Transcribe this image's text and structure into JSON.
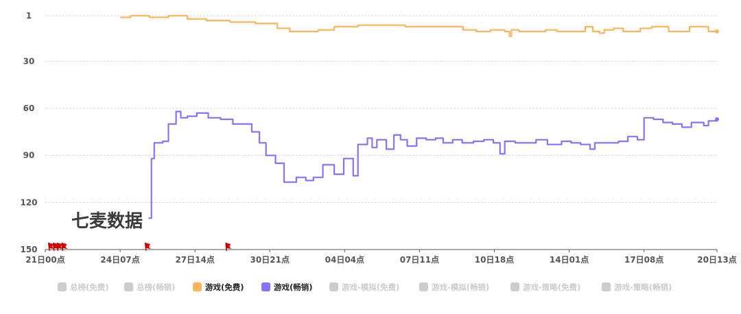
{
  "chart_data": {
    "type": "line",
    "y_axis": {
      "ticks": [
        "1",
        "30",
        "60",
        "90",
        "120",
        "150"
      ],
      "tick_values": [
        1,
        30,
        60,
        90,
        120,
        150
      ],
      "inverted": true,
      "range": [
        1,
        150
      ]
    },
    "x_axis": {
      "ticks": [
        "21日00点",
        "24日07点",
        "27日14点",
        "30日21点",
        "04日04点",
        "07日11点",
        "10日18点",
        "14日01点",
        "17日08点",
        "20日13点"
      ],
      "tick_values": [
        0,
        79,
        158,
        237,
        316,
        395,
        474,
        553,
        632,
        709
      ],
      "range": [
        0,
        709
      ]
    },
    "grid": true,
    "series": [
      {
        "name": "游戏(免费)",
        "color": "#ffb35c",
        "points": [
          [
            79,
            2
          ],
          [
            90,
            1
          ],
          [
            110,
            2
          ],
          [
            130,
            1
          ],
          [
            150,
            3
          ],
          [
            170,
            4
          ],
          [
            195,
            5
          ],
          [
            222,
            6
          ],
          [
            240,
            6
          ],
          [
            245,
            9
          ],
          [
            258,
            11
          ],
          [
            275,
            11
          ],
          [
            288,
            10
          ],
          [
            305,
            8
          ],
          [
            330,
            7
          ],
          [
            355,
            7
          ],
          [
            380,
            8
          ],
          [
            410,
            8
          ],
          [
            436,
            8
          ],
          [
            441,
            10
          ],
          [
            455,
            11
          ],
          [
            470,
            10
          ],
          [
            485,
            11
          ],
          [
            490,
            14
          ],
          [
            492,
            10
          ],
          [
            500,
            11
          ],
          [
            515,
            11
          ],
          [
            528,
            10
          ],
          [
            540,
            11
          ],
          [
            555,
            11
          ],
          [
            565,
            11
          ],
          [
            570,
            8
          ],
          [
            578,
            11
          ],
          [
            585,
            12
          ],
          [
            590,
            10
          ],
          [
            600,
            9
          ],
          [
            610,
            11
          ],
          [
            620,
            11
          ],
          [
            628,
            9
          ],
          [
            640,
            8
          ],
          [
            650,
            8
          ],
          [
            658,
            11
          ],
          [
            670,
            11
          ],
          [
            680,
            8
          ],
          [
            690,
            8
          ],
          [
            700,
            11
          ],
          [
            709,
            11
          ]
        ]
      },
      {
        "name": "游戏(畅销)",
        "color": "#8474fb",
        "points": [
          [
            109,
            130
          ],
          [
            112,
            92
          ],
          [
            115,
            82
          ],
          [
            124,
            81
          ],
          [
            130,
            70
          ],
          [
            138,
            62
          ],
          [
            143,
            66
          ],
          [
            150,
            65
          ],
          [
            160,
            63
          ],
          [
            172,
            66
          ],
          [
            185,
            67
          ],
          [
            198,
            70
          ],
          [
            208,
            70
          ],
          [
            218,
            75
          ],
          [
            226,
            82
          ],
          [
            233,
            90
          ],
          [
            243,
            95
          ],
          [
            252,
            107
          ],
          [
            265,
            104
          ],
          [
            275,
            106
          ],
          [
            283,
            104
          ],
          [
            293,
            96
          ],
          [
            305,
            102
          ],
          [
            315,
            92
          ],
          [
            325,
            103
          ],
          [
            330,
            83
          ],
          [
            340,
            79
          ],
          [
            345,
            85
          ],
          [
            350,
            80
          ],
          [
            360,
            86
          ],
          [
            368,
            77
          ],
          [
            375,
            80
          ],
          [
            382,
            84
          ],
          [
            392,
            79
          ],
          [
            402,
            80
          ],
          [
            412,
            79
          ],
          [
            420,
            82
          ],
          [
            430,
            80
          ],
          [
            440,
            82
          ],
          [
            452,
            81
          ],
          [
            463,
            80
          ],
          [
            473,
            82
          ],
          [
            480,
            89
          ],
          [
            485,
            81
          ],
          [
            496,
            82
          ],
          [
            508,
            82
          ],
          [
            518,
            80
          ],
          [
            530,
            83
          ],
          [
            545,
            81
          ],
          [
            555,
            82
          ],
          [
            565,
            83
          ],
          [
            575,
            86
          ],
          [
            580,
            82
          ],
          [
            592,
            82
          ],
          [
            605,
            81
          ],
          [
            615,
            78
          ],
          [
            625,
            80
          ],
          [
            632,
            66
          ],
          [
            642,
            67
          ],
          [
            652,
            69
          ],
          [
            662,
            70
          ],
          [
            672,
            72
          ],
          [
            682,
            69
          ],
          [
            695,
            71
          ],
          [
            700,
            68
          ],
          [
            709,
            67
          ]
        ]
      }
    ],
    "legend": {
      "position": "bottom",
      "items": [
        {
          "label": "总榜(免费)",
          "color": "#cccccc",
          "active": false
        },
        {
          "label": "总榜(畅销)",
          "color": "#cccccc",
          "active": false
        },
        {
          "label": "游戏(免费)",
          "color": "#ffb35c",
          "active": true
        },
        {
          "label": "游戏(畅销)",
          "color": "#8474fb",
          "active": true
        },
        {
          "label": "游戏-模拟(免费)",
          "color": "#cccccc",
          "active": false
        },
        {
          "label": "游戏-模拟(畅销)",
          "color": "#cccccc",
          "active": false
        },
        {
          "label": "游戏-策略(免费)",
          "color": "#cccccc",
          "active": false
        },
        {
          "label": "游戏-策略(畅销)",
          "color": "#cccccc",
          "active": false
        }
      ]
    },
    "event_flags": [
      3,
      8,
      12,
      17,
      105,
      190
    ],
    "flag_color": "#e00000",
    "watermark": "七麦数据"
  }
}
